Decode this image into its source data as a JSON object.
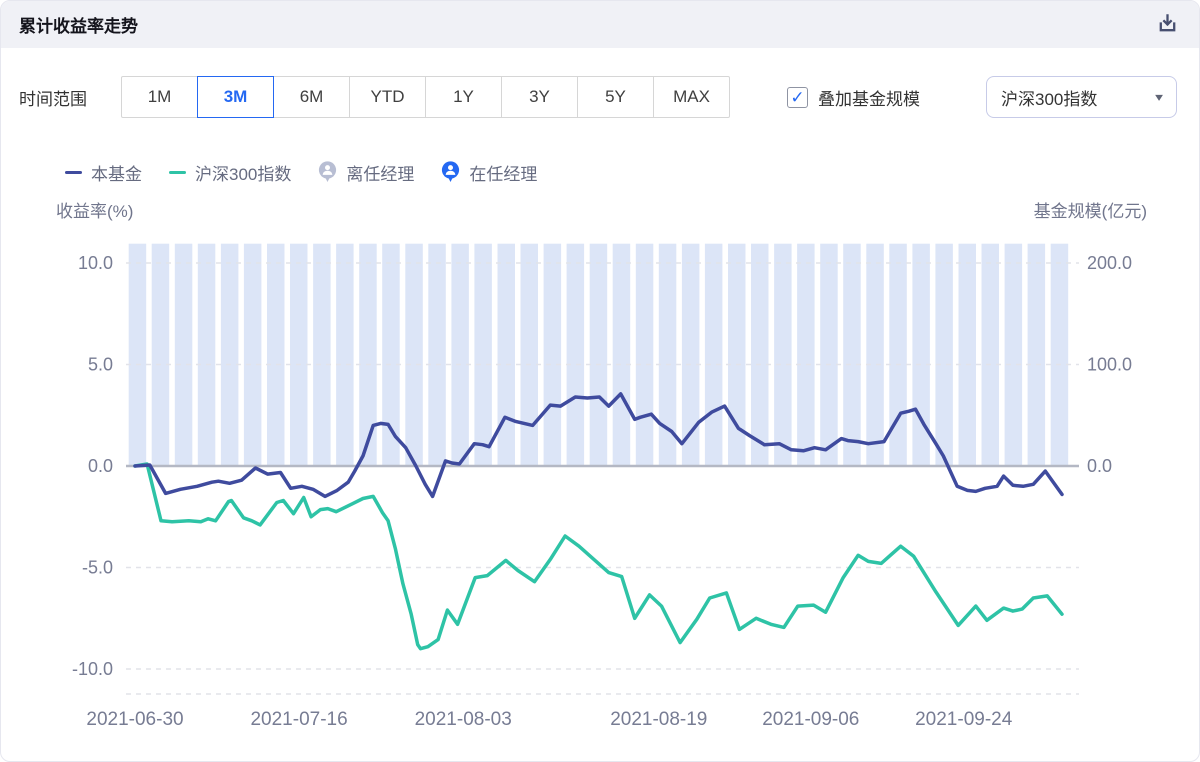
{
  "header": {
    "title": "累计收益率走势"
  },
  "controls": {
    "time_range_label": "时间范围",
    "time_ranges": [
      "1M",
      "3M",
      "6M",
      "YTD",
      "1Y",
      "3Y",
      "5Y",
      "MAX"
    ],
    "active_time_range": "3M",
    "overlay_checkbox": {
      "checked": true,
      "check_glyph": "✓",
      "label": "叠加基金规模"
    },
    "benchmark_select": {
      "value": "沪深300指数",
      "caret": "▾"
    }
  },
  "legend": {
    "items": [
      {
        "kind": "line",
        "label": "本基金",
        "color": "#3F4B9E"
      },
      {
        "kind": "line",
        "label": "沪深300指数",
        "color": "#2EC3A6"
      },
      {
        "kind": "pin",
        "label": "离任经理",
        "color": "#B8BED3"
      },
      {
        "kind": "pin",
        "label": "在任经理",
        "color": "#2468F2"
      }
    ]
  },
  "colors": {
    "accent_blue": "#2468F2",
    "fund_line": "#3F4B9E",
    "benchmark_line": "#2EC3A6",
    "bars": "#DCE5F7",
    "zero_line": "#B4B8C4",
    "grid": "#E2E3E9",
    "axis_text": "#777C93",
    "header_bg": "#F0F1F6"
  },
  "chart_data": {
    "type": "line",
    "left_axis": {
      "title": "收益率(%)",
      "ticks": [
        10.0,
        5.0,
        0.0,
        -5.0,
        -10.0
      ]
    },
    "right_axis": {
      "title": "基金规模(亿元)",
      "ticks": [
        200.0,
        100.0,
        0.0
      ]
    },
    "x_ticks": [
      {
        "label": "2021-06-30",
        "f": 0.0
      },
      {
        "label": "2021-07-16",
        "f": 0.177
      },
      {
        "label": "2021-08-03",
        "f": 0.354
      },
      {
        "label": "2021-08-19",
        "f": 0.565
      },
      {
        "label": "2021-09-06",
        "f": 0.729
      },
      {
        "label": "2021-09-24",
        "f": 0.894
      }
    ],
    "fund_size_bars": {
      "name": "基金规模",
      "uniform": true,
      "value_est": 219,
      "count": 41,
      "color": "#DCE5F7"
    },
    "series": [
      {
        "name": "本基金",
        "color": "#3F4B9E",
        "points": [
          [
            0.0,
            0.0
          ],
          [
            0.016,
            0.05
          ],
          [
            0.033,
            -1.35
          ],
          [
            0.049,
            -1.15
          ],
          [
            0.067,
            -1.0
          ],
          [
            0.083,
            -0.8
          ],
          [
            0.09,
            -0.75
          ],
          [
            0.102,
            -0.85
          ],
          [
            0.115,
            -0.7
          ],
          [
            0.13,
            -0.1
          ],
          [
            0.143,
            -0.4
          ],
          [
            0.157,
            -0.32
          ],
          [
            0.168,
            -1.1
          ],
          [
            0.18,
            -1.0
          ],
          [
            0.192,
            -1.15
          ],
          [
            0.205,
            -1.5
          ],
          [
            0.218,
            -1.2
          ],
          [
            0.23,
            -0.8
          ],
          [
            0.237,
            -0.25
          ],
          [
            0.246,
            0.5
          ],
          [
            0.257,
            2.0
          ],
          [
            0.265,
            2.1
          ],
          [
            0.273,
            2.05
          ],
          [
            0.281,
            1.45
          ],
          [
            0.292,
            0.9
          ],
          [
            0.303,
            0.0
          ],
          [
            0.313,
            -0.9
          ],
          [
            0.321,
            -1.5
          ],
          [
            0.335,
            0.25
          ],
          [
            0.342,
            0.15
          ],
          [
            0.35,
            0.1
          ],
          [
            0.366,
            1.1
          ],
          [
            0.375,
            1.05
          ],
          [
            0.382,
            0.95
          ],
          [
            0.399,
            2.4
          ],
          [
            0.41,
            2.2
          ],
          [
            0.429,
            2.0
          ],
          [
            0.448,
            3.0
          ],
          [
            0.459,
            2.95
          ],
          [
            0.475,
            3.4
          ],
          [
            0.488,
            3.35
          ],
          [
            0.501,
            3.4
          ],
          [
            0.511,
            2.95
          ],
          [
            0.524,
            3.55
          ],
          [
            0.539,
            2.3
          ],
          [
            0.545,
            2.4
          ],
          [
            0.557,
            2.55
          ],
          [
            0.566,
            2.1
          ],
          [
            0.579,
            1.7
          ],
          [
            0.59,
            1.1
          ],
          [
            0.608,
            2.15
          ],
          [
            0.622,
            2.65
          ],
          [
            0.636,
            2.95
          ],
          [
            0.651,
            1.85
          ],
          [
            0.663,
            1.5
          ],
          [
            0.679,
            1.05
          ],
          [
            0.695,
            1.1
          ],
          [
            0.708,
            0.8
          ],
          [
            0.721,
            0.75
          ],
          [
            0.733,
            0.9
          ],
          [
            0.745,
            0.8
          ],
          [
            0.762,
            1.35
          ],
          [
            0.769,
            1.25
          ],
          [
            0.78,
            1.2
          ],
          [
            0.791,
            1.1
          ],
          [
            0.808,
            1.2
          ],
          [
            0.826,
            2.6
          ],
          [
            0.835,
            2.7
          ],
          [
            0.842,
            2.8
          ],
          [
            0.851,
            2.05
          ],
          [
            0.864,
            1.1
          ],
          [
            0.872,
            0.5
          ],
          [
            0.887,
            -1.0
          ],
          [
            0.898,
            -1.2
          ],
          [
            0.907,
            -1.25
          ],
          [
            0.917,
            -1.1
          ],
          [
            0.93,
            -1.0
          ],
          [
            0.937,
            -0.5
          ],
          [
            0.947,
            -0.95
          ],
          [
            0.958,
            -1.0
          ],
          [
            0.969,
            -0.9
          ],
          [
            0.982,
            -0.25
          ],
          [
            1.0,
            -1.4
          ]
        ]
      },
      {
        "name": "沪深300指数",
        "color": "#2EC3A6",
        "points": [
          [
            0.0,
            0.0
          ],
          [
            0.013,
            0.1
          ],
          [
            0.028,
            -2.7
          ],
          [
            0.04,
            -2.75
          ],
          [
            0.058,
            -2.7
          ],
          [
            0.071,
            -2.75
          ],
          [
            0.079,
            -2.6
          ],
          [
            0.087,
            -2.7
          ],
          [
            0.101,
            -1.75
          ],
          [
            0.104,
            -1.7
          ],
          [
            0.117,
            -2.55
          ],
          [
            0.126,
            -2.7
          ],
          [
            0.135,
            -2.9
          ],
          [
            0.153,
            -1.8
          ],
          [
            0.16,
            -1.7
          ],
          [
            0.171,
            -2.35
          ],
          [
            0.182,
            -1.55
          ],
          [
            0.19,
            -2.5
          ],
          [
            0.2,
            -2.15
          ],
          [
            0.208,
            -2.1
          ],
          [
            0.217,
            -2.25
          ],
          [
            0.235,
            -1.85
          ],
          [
            0.246,
            -1.6
          ],
          [
            0.257,
            -1.5
          ],
          [
            0.267,
            -2.3
          ],
          [
            0.273,
            -2.7
          ],
          [
            0.281,
            -4.1
          ],
          [
            0.289,
            -5.8
          ],
          [
            0.298,
            -7.3
          ],
          [
            0.305,
            -8.8
          ],
          [
            0.308,
            -9.0
          ],
          [
            0.316,
            -8.9
          ],
          [
            0.327,
            -8.55
          ],
          [
            0.337,
            -7.1
          ],
          [
            0.348,
            -7.8
          ],
          [
            0.367,
            -5.5
          ],
          [
            0.38,
            -5.4
          ],
          [
            0.4,
            -4.65
          ],
          [
            0.413,
            -5.15
          ],
          [
            0.431,
            -5.7
          ],
          [
            0.448,
            -4.6
          ],
          [
            0.464,
            -3.45
          ],
          [
            0.479,
            -3.95
          ],
          [
            0.495,
            -4.6
          ],
          [
            0.511,
            -5.25
          ],
          [
            0.525,
            -5.45
          ],
          [
            0.539,
            -7.5
          ],
          [
            0.555,
            -6.35
          ],
          [
            0.568,
            -6.9
          ],
          [
            0.588,
            -8.7
          ],
          [
            0.606,
            -7.55
          ],
          [
            0.62,
            -6.5
          ],
          [
            0.638,
            -6.25
          ],
          [
            0.652,
            -8.05
          ],
          [
            0.67,
            -7.5
          ],
          [
            0.686,
            -7.8
          ],
          [
            0.7,
            -7.95
          ],
          [
            0.715,
            -6.9
          ],
          [
            0.732,
            -6.85
          ],
          [
            0.745,
            -7.2
          ],
          [
            0.764,
            -5.5
          ],
          [
            0.78,
            -4.4
          ],
          [
            0.791,
            -4.7
          ],
          [
            0.805,
            -4.8
          ],
          [
            0.826,
            -3.95
          ],
          [
            0.84,
            -4.45
          ],
          [
            0.864,
            -6.2
          ],
          [
            0.888,
            -7.85
          ],
          [
            0.907,
            -6.9
          ],
          [
            0.919,
            -7.6
          ],
          [
            0.937,
            -7.0
          ],
          [
            0.947,
            -7.15
          ],
          [
            0.957,
            -7.05
          ],
          [
            0.969,
            -6.5
          ],
          [
            0.984,
            -6.4
          ],
          [
            1.0,
            -7.3
          ]
        ]
      }
    ]
  }
}
